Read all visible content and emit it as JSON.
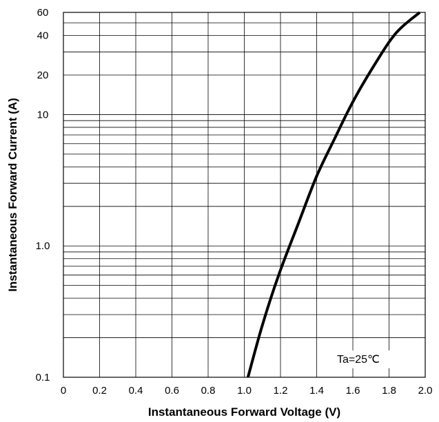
{
  "chart_data": {
    "type": "line",
    "xlabel": "Instantaneous Forward Voltage (V)",
    "ylabel": "Instantaneous Forward Current (A)",
    "xlim": [
      0,
      2.0
    ],
    "ylim": [
      0.1,
      60
    ],
    "yscale": "log",
    "grid": true,
    "x_ticks": [
      "0",
      "0.2",
      "0.4",
      "0.6",
      "0.8",
      "1.0",
      "1.2",
      "1.4",
      "1.6",
      "1.8",
      "2.0"
    ],
    "y_ticks": [
      "0.1",
      "1.0",
      "10",
      "20",
      "40",
      "60"
    ],
    "annotation": "Ta=25℃",
    "series": [
      {
        "color": "#000000",
        "x": [
          1.02,
          1.1,
          1.19,
          1.3,
          1.4,
          1.5,
          1.6,
          1.72,
          1.84,
          1.97
        ],
        "y": [
          0.1,
          0.25,
          0.6,
          1.5,
          3.4,
          6.6,
          12.5,
          24,
          42,
          60
        ]
      }
    ]
  }
}
